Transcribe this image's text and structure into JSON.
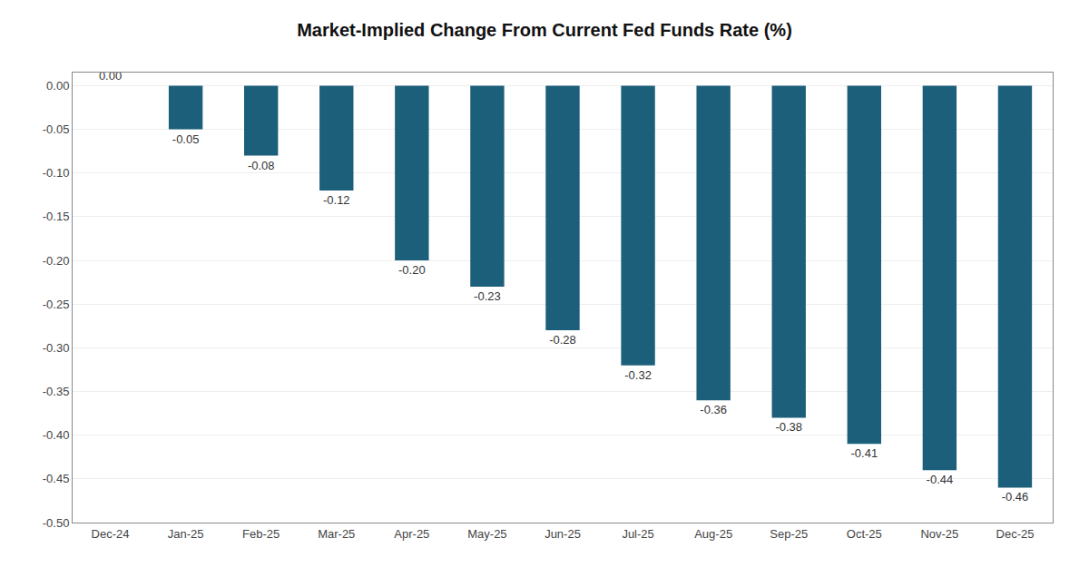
{
  "chart_data": {
    "type": "bar",
    "title": "Market-Implied Change From Current Fed Funds Rate (%)",
    "categories": [
      "Dec-24",
      "Jan-25",
      "Feb-25",
      "Mar-25",
      "Apr-25",
      "May-25",
      "Jun-25",
      "Jul-25",
      "Aug-25",
      "Sep-25",
      "Oct-25",
      "Nov-25",
      "Dec-25"
    ],
    "values": [
      0.0,
      -0.05,
      -0.08,
      -0.12,
      -0.2,
      -0.23,
      -0.28,
      -0.32,
      -0.36,
      -0.38,
      -0.41,
      -0.44,
      -0.46
    ],
    "value_labels": [
      "0.00",
      "-0.05",
      "-0.08",
      "-0.12",
      "-0.20",
      "-0.23",
      "-0.28",
      "-0.32",
      "-0.36",
      "-0.38",
      "-0.41",
      "-0.44",
      "-0.46"
    ],
    "data_labels": true,
    "color": "#1c5f7a",
    "ylim": [
      -0.5,
      0.015
    ],
    "yticks": [
      {
        "value": 0.0,
        "label": "0.00"
      },
      -0.05,
      {
        "value": -0.1,
        "label": "-0.10"
      },
      -0.15,
      {
        "value": -0.2,
        "label": "-0.20"
      },
      -0.25,
      {
        "value": -0.3,
        "label": "-0.30"
      },
      -0.35,
      {
        "value": -0.4,
        "label": "-0.40"
      },
      -0.45,
      {
        "value": -0.5,
        "label": "-0.50"
      }
    ],
    "grid": true
  }
}
